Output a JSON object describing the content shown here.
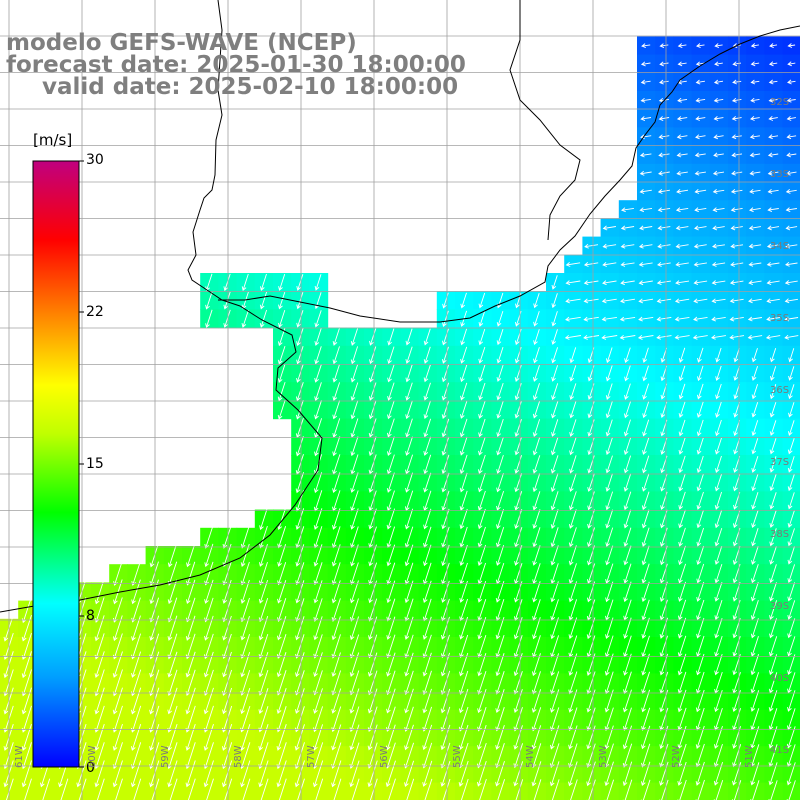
{
  "titles": {
    "line1": "modelo GEFS-WAVE (NCEP)",
    "line2": "forecast date: 2025-01-30 18:00:00",
    "line3": "valid date: 2025-02-10 18:00:00"
  },
  "colorbar": {
    "unit": "[m/s]",
    "ticks": [
      "30",
      "22",
      "15",
      "8",
      "0"
    ],
    "min": 0,
    "max": 30,
    "colors": [
      "#0000ff",
      "#00a0ff",
      "#00ffff",
      "#00ff00",
      "#c0ff00",
      "#ffff00",
      "#ff8000",
      "#ff0000",
      "#c0007f"
    ]
  },
  "map": {
    "variable": "wind speed",
    "lat_labels": [
      "32S",
      "33S",
      "34S",
      "35S",
      "36S",
      "37S",
      "38S",
      "39S",
      "40S",
      "41S"
    ],
    "lon_labels": [
      "61W",
      "60W",
      "59W",
      "58W",
      "57W",
      "56W",
      "55W",
      "54W",
      "53W",
      "52W",
      "51W"
    ],
    "land_color": "#ffffff",
    "grid_color": "#a0a0a0"
  }
}
